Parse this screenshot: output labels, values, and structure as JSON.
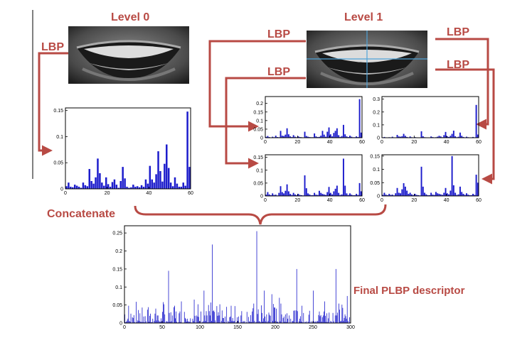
{
  "labels": {
    "level0": "Level 0",
    "level1": "Level 1",
    "lbp": "LBP",
    "concatenate": "Concatenate",
    "final": "Final PLBP descriptor"
  },
  "colors": {
    "label": "#b84a44",
    "arrow": "#b84a44",
    "bar": "#1c1ccc",
    "grid_line": "#4fa3d8"
  },
  "icons": [
    "mouth-image-level0",
    "mouth-image-level1"
  ],
  "chart_data": [
    {
      "type": "bar",
      "name": "level0-histogram",
      "xlim": [
        0,
        60
      ],
      "ylim": [
        0,
        0.155
      ],
      "xticks": [
        "0",
        "20",
        "40",
        "60"
      ],
      "yticks": [
        "0",
        "0.05",
        "0.1",
        "0.15"
      ],
      "values": [
        0.005,
        0.012,
        0.004,
        0.003,
        0.008,
        0.006,
        0.004,
        0.002,
        0.012,
        0.007,
        0.005,
        0.038,
        0.015,
        0.01,
        0.022,
        0.058,
        0.03,
        0.012,
        0.006,
        0.022,
        0.009,
        0.004,
        0.013,
        0.018,
        0.008,
        0.002,
        0.015,
        0.042,
        0.02,
        0.004,
        0.002,
        0.003,
        0.008,
        0.004,
        0.005,
        0.003,
        0.007,
        0.004,
        0.018,
        0.01,
        0.044,
        0.018,
        0.012,
        0.028,
        0.072,
        0.034,
        0.014,
        0.048,
        0.085,
        0.04,
        0.012,
        0.005,
        0.022,
        0.01,
        0.004,
        0.004,
        0.012,
        0.006,
        0.148,
        0.042
      ]
    },
    {
      "type": "bar",
      "name": "level1-top-left-histogram",
      "xlim": [
        0,
        60
      ],
      "ylim": [
        0,
        0.24
      ],
      "xticks": [
        "0",
        "20",
        "40",
        "60"
      ],
      "yticks": [
        "0",
        "0.05",
        "0.1",
        "0.15",
        "0.2"
      ],
      "values": [
        0.005,
        0.01,
        0.004,
        0.002,
        0.006,
        0.003,
        0.012,
        0.004,
        0.003,
        0.04,
        0.012,
        0.01,
        0.018,
        0.055,
        0.02,
        0.008,
        0.004,
        0.015,
        0.006,
        0.003,
        0.008,
        0.004,
        0.003,
        0.002,
        0.035,
        0.01,
        0.006,
        0.004,
        0.003,
        0.003,
        0.025,
        0.008,
        0.004,
        0.005,
        0.012,
        0.04,
        0.018,
        0.006,
        0.035,
        0.06,
        0.02,
        0.008,
        0.028,
        0.04,
        0.055,
        0.015,
        0.005,
        0.01,
        0.075,
        0.02,
        0.008,
        0.004,
        0.012,
        0.006,
        0.003,
        0.003,
        0.008,
        0.004,
        0.225,
        0.03
      ]
    },
    {
      "type": "bar",
      "name": "level1-top-right-histogram",
      "xlim": [
        0,
        60
      ],
      "ylim": [
        0,
        0.32
      ],
      "xticks": [
        "0",
        "20",
        "40",
        "60"
      ],
      "yticks": [
        "0",
        "0.1",
        "0.2",
        "0.3"
      ],
      "values": [
        0.003,
        0.006,
        0.003,
        0.002,
        0.004,
        0.003,
        0.008,
        0.003,
        0.002,
        0.022,
        0.01,
        0.008,
        0.012,
        0.03,
        0.015,
        0.006,
        0.003,
        0.01,
        0.004,
        0.002,
        0.005,
        0.003,
        0.002,
        0.002,
        0.05,
        0.012,
        0.004,
        0.003,
        0.002,
        0.002,
        0.01,
        0.005,
        0.003,
        0.004,
        0.008,
        0.015,
        0.01,
        0.004,
        0.02,
        0.045,
        0.012,
        0.006,
        0.015,
        0.03,
        0.055,
        0.012,
        0.004,
        0.008,
        0.04,
        0.015,
        0.006,
        0.003,
        0.008,
        0.004,
        0.002,
        0.003,
        0.006,
        0.003,
        0.255,
        0.025
      ]
    },
    {
      "type": "bar",
      "name": "level1-bottom-left-histogram",
      "xlim": [
        0,
        60
      ],
      "ylim": [
        0,
        0.16
      ],
      "xticks": [
        "0",
        "20",
        "40",
        "60"
      ],
      "yticks": [
        "0",
        "0.05",
        "0.1",
        "0.15"
      ],
      "values": [
        0.005,
        0.015,
        0.006,
        0.003,
        0.01,
        0.004,
        0.005,
        0.002,
        0.012,
        0.038,
        0.015,
        0.01,
        0.02,
        0.045,
        0.018,
        0.008,
        0.004,
        0.012,
        0.006,
        0.003,
        0.008,
        0.004,
        0.003,
        0.002,
        0.08,
        0.03,
        0.01,
        0.006,
        0.003,
        0.003,
        0.012,
        0.005,
        0.004,
        0.02,
        0.012,
        0.008,
        0.006,
        0.004,
        0.015,
        0.035,
        0.012,
        0.006,
        0.018,
        0.028,
        0.04,
        0.012,
        0.004,
        0.006,
        0.145,
        0.04,
        0.01,
        0.004,
        0.01,
        0.005,
        0.003,
        0.003,
        0.008,
        0.004,
        0.05,
        0.018
      ]
    },
    {
      "type": "bar",
      "name": "level1-bottom-right-histogram",
      "xlim": [
        0,
        60
      ],
      "ylim": [
        0,
        0.155
      ],
      "xticks": [
        "0",
        "20",
        "40",
        "60"
      ],
      "yticks": [
        "0",
        "0.05",
        "0.1",
        "0.15"
      ],
      "values": [
        0.004,
        0.012,
        0.005,
        0.003,
        0.008,
        0.004,
        0.005,
        0.002,
        0.01,
        0.03,
        0.012,
        0.01,
        0.025,
        0.048,
        0.035,
        0.02,
        0.008,
        0.012,
        0.006,
        0.003,
        0.008,
        0.004,
        0.003,
        0.002,
        0.11,
        0.035,
        0.012,
        0.006,
        0.003,
        0.003,
        0.012,
        0.005,
        0.004,
        0.015,
        0.01,
        0.008,
        0.006,
        0.004,
        0.012,
        0.03,
        0.01,
        0.006,
        0.02,
        0.15,
        0.04,
        0.012,
        0.004,
        0.006,
        0.035,
        0.015,
        0.008,
        0.004,
        0.01,
        0.005,
        0.003,
        0.003,
        0.008,
        0.004,
        0.08,
        0.05
      ]
    },
    {
      "type": "bar",
      "name": "final-histogram",
      "xlim": [
        0,
        300
      ],
      "ylim": [
        0,
        0.27
      ],
      "xticks": [
        "0",
        "50",
        "100",
        "150",
        "200",
        "250",
        "300"
      ],
      "yticks": [
        "0",
        "0.05",
        "0.1",
        "0.15",
        "0.2",
        "0.25"
      ],
      "peaks": [
        [
          58,
          0.145
        ],
        [
          105,
          0.09
        ],
        [
          116,
          0.218
        ],
        [
          175,
          0.255
        ],
        [
          185,
          0.09
        ],
        [
          195,
          0.08
        ],
        [
          228,
          0.15
        ],
        [
          250,
          0.09
        ],
        [
          280,
          0.15
        ],
        [
          295,
          0.075
        ],
        [
          75,
          0.06
        ],
        [
          92,
          0.065
        ],
        [
          205,
          0.07
        ],
        [
          265,
          0.06
        ]
      ],
      "seed": 7
    }
  ]
}
